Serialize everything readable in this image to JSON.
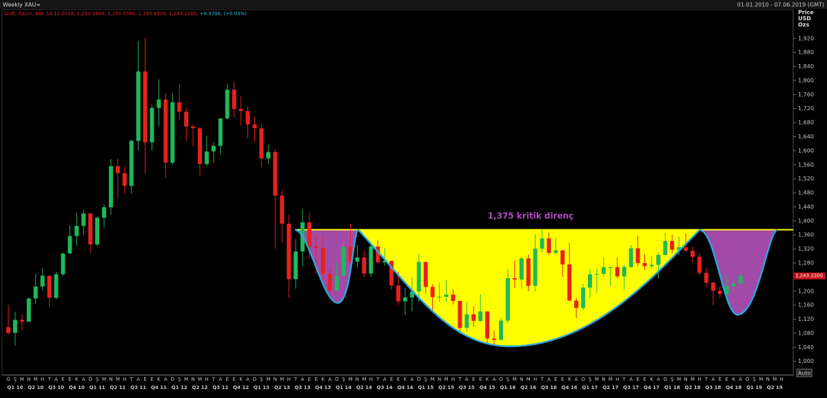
{
  "chart_data": {
    "type": "candlestick",
    "title": "Weekly XAU=",
    "date_range": "01.01.2010 - 07.06.2019 (GMT)",
    "info_line": "Cndl; XAU=, Bid, 14.12.2018, 1,250.3600, 1,250.5500, 1,240.4900, 1,243.2200,",
    "info_change": "+0.3700, (+0.03%)",
    "y_axis_label": [
      "Price",
      "USD",
      "Ozs"
    ],
    "annotation": "1,375 kritik direnç",
    "resistance": 1375,
    "last_price": {
      "value": 1243.22,
      "label": "1,243.2200"
    },
    "auto_button": "Auto",
    "up_color": "#1fb85a",
    "down_color": "#e8201c",
    "categories": [
      "O",
      "Ş",
      "M",
      "N",
      "M",
      "H",
      "T",
      "A",
      "E",
      "E",
      "K",
      "A",
      "O",
      "Ş",
      "M",
      "N",
      "M",
      "H",
      "T",
      "A",
      "E",
      "E",
      "K",
      "A",
      "O",
      "Ş",
      "M",
      "N",
      "M",
      "H",
      "T",
      "A",
      "E",
      "E",
      "K",
      "A",
      "O",
      "Ş",
      "M",
      "N",
      "M",
      "H",
      "T",
      "A",
      "E",
      "E",
      "K",
      "A",
      "O",
      "Ş",
      "M",
      "N",
      "M",
      "H",
      "T",
      "A",
      "E",
      "E",
      "K",
      "A",
      "O",
      "Ş",
      "M",
      "N",
      "M",
      "H",
      "T",
      "A",
      "E",
      "E",
      "K",
      "A",
      "O",
      "Ş",
      "M",
      "N",
      "M",
      "H",
      "T",
      "A",
      "E",
      "E",
      "K",
      "A",
      "O",
      "Ş",
      "M",
      "N",
      "M",
      "H",
      "T",
      "A",
      "E",
      "E",
      "K",
      "A",
      "O",
      "Ş",
      "M",
      "N",
      "M",
      "H",
      "T",
      "A",
      "E",
      "E",
      "K",
      "A",
      "O",
      "Ş",
      "M",
      "N",
      "M",
      "H"
    ],
    "quarters": [
      "Q1 10",
      "Q2 10",
      "Q3 10",
      "Q4 10",
      "Q1 11",
      "Q2 11",
      "Q3 11",
      "Q4 11",
      "Q1 12",
      "Q2 12",
      "Q3 12",
      "Q4 12",
      "Q1 13",
      "Q2 13",
      "Q3 13",
      "Q4 13",
      "Q1 14",
      "Q2 14",
      "Q3 14",
      "Q4 14",
      "Q1 15",
      "Q2 15",
      "Q3 15",
      "Q4 15",
      "Q1 16",
      "Q2 16",
      "Q3 16",
      "Q4 16",
      "Q1 17",
      "Q2 17",
      "Q3 17",
      "Q4 17",
      "Q1 18",
      "Q2 18",
      "Q3 18",
      "Q4 18",
      "Q1 19",
      "Q2 19"
    ],
    "open": [
      1097,
      1081,
      1118,
      1113,
      1179,
      1213,
      1244,
      1181,
      1248,
      1307,
      1357,
      1386,
      1421,
      1333,
      1409,
      1439,
      1556,
      1536,
      1500,
      1628,
      1826,
      1624,
      1722,
      1746,
      1566,
      1738,
      1711,
      1669,
      1664,
      1562,
      1598,
      1614,
      1692,
      1774,
      1719,
      1713,
      1675,
      1664,
      1578,
      1596,
      1472,
      1392,
      1234,
      1313,
      1396,
      1327,
      1323,
      1250,
      1202,
      1244,
      1326,
      1284,
      1296,
      1250,
      1327,
      1282,
      1286,
      1216,
      1171,
      1182,
      1199,
      1283,
      1212,
      1183,
      1184,
      1190,
      1172,
      1095,
      1134,
      1115,
      1142,
      1065,
      1061,
      1116,
      1237,
      1233,
      1293,
      1215,
      1321,
      1350,
      1309,
      1316,
      1276,
      1173,
      1152,
      1210,
      1248,
      1249,
      1268,
      1268,
      1242,
      1269,
      1322,
      1280,
      1271,
      1275,
      1303,
      1343,
      1318,
      1325,
      1315,
      1298,
      1252,
      1224,
      1201,
      1192,
      1214,
      1222,
      null,
      null,
      null,
      null,
      null,
      null
    ],
    "high": [
      1160,
      1141,
      1135,
      1181,
      1249,
      1265,
      1244,
      1254,
      1310,
      1387,
      1424,
      1432,
      1424,
      1412,
      1448,
      1576,
      1577,
      1556,
      1632,
      1913,
      1921,
      1730,
      1803,
      1764,
      1764,
      1791,
      1723,
      1676,
      1668,
      1642,
      1625,
      1693,
      1790,
      1796,
      1755,
      1726,
      1697,
      1677,
      1617,
      1605,
      1488,
      1418,
      1348,
      1434,
      1424,
      1361,
      1361,
      1267,
      1280,
      1345,
      1392,
      1331,
      1315,
      1332,
      1345,
      1322,
      1287,
      1255,
      1209,
      1239,
      1307,
      1284,
      1220,
      1224,
      1232,
      1205,
      1173,
      1170,
      1157,
      1191,
      1143,
      1088,
      1124,
      1263,
      1287,
      1298,
      1304,
      1362,
      1375,
      1367,
      1352,
      1317,
      1338,
      1180,
      1220,
      1264,
      1264,
      1295,
      1270,
      1296,
      1274,
      1331,
      1357,
      1306,
      1299,
      1309,
      1366,
      1361,
      1356,
      1365,
      1326,
      1309,
      1266,
      1226,
      1214,
      1243,
      1237,
      1250,
      null,
      null,
      null,
      null,
      null,
      null
    ],
    "low": [
      1075,
      1045,
      1087,
      1112,
      1164,
      1202,
      1155,
      1176,
      1243,
      1310,
      1330,
      1360,
      1309,
      1328,
      1381,
      1418,
      1462,
      1478,
      1478,
      1600,
      1535,
      1600,
      1670,
      1523,
      1561,
      1688,
      1627,
      1612,
      1527,
      1557,
      1565,
      1589,
      1690,
      1695,
      1672,
      1635,
      1626,
      1554,
      1562,
      1321,
      1338,
      1180,
      1207,
      1271,
      1292,
      1251,
      1228,
      1182,
      1202,
      1238,
      1277,
      1268,
      1240,
      1240,
      1281,
      1272,
      1204,
      1160,
      1131,
      1142,
      1168,
      1192,
      1142,
      1170,
      1169,
      1162,
      1077,
      1085,
      1098,
      1113,
      1052,
      1046,
      1062,
      1108,
      1209,
      1207,
      1200,
      1199,
      1310,
      1302,
      1304,
      1241,
      1171,
      1123,
      1146,
      1180,
      1195,
      1240,
      1214,
      1236,
      1205,
      1266,
      1271,
      1260,
      1264,
      1236,
      1302,
      1307,
      1303,
      1311,
      1282,
      1245,
      1211,
      1160,
      1180,
      1182,
      1196,
      1221,
      null,
      null,
      null,
      null,
      null,
      null
    ],
    "close": [
      1081,
      1118,
      1113,
      1179,
      1213,
      1244,
      1181,
      1248,
      1307,
      1357,
      1386,
      1421,
      1333,
      1409,
      1439,
      1556,
      1536,
      1500,
      1628,
      1826,
      1624,
      1722,
      1746,
      1566,
      1738,
      1711,
      1669,
      1664,
      1562,
      1598,
      1614,
      1692,
      1774,
      1719,
      1713,
      1675,
      1664,
      1578,
      1596,
      1472,
      1392,
      1234,
      1313,
      1396,
      1327,
      1323,
      1250,
      1202,
      1244,
      1326,
      1284,
      1296,
      1250,
      1327,
      1282,
      1286,
      1216,
      1171,
      1182,
      1199,
      1283,
      1212,
      1183,
      1184,
      1190,
      1172,
      1095,
      1134,
      1115,
      1142,
      1065,
      1061,
      1116,
      1237,
      1233,
      1293,
      1215,
      1321,
      1350,
      1309,
      1316,
      1276,
      1173,
      1152,
      1210,
      1248,
      1249,
      1268,
      1268,
      1242,
      1269,
      1322,
      1280,
      1271,
      1275,
      1303,
      1343,
      1318,
      1325,
      1315,
      1298,
      1252,
      1224,
      1201,
      1192,
      1214,
      1222,
      1243,
      null,
      null,
      null,
      null,
      null,
      null
    ],
    "ylim": [
      970,
      2002
    ],
    "yticks": [
      {
        "value": 1000,
        "label": "1,000"
      },
      {
        "value": 1040,
        "label": "1,040"
      },
      {
        "value": 1080,
        "label": "1,080"
      },
      {
        "value": 1120,
        "label": "1,120"
      },
      {
        "value": 1160,
        "label": "1,160"
      },
      {
        "value": 1200,
        "label": "1,200"
      },
      {
        "value": 1240,
        "label": "1,240"
      },
      {
        "value": 1280,
        "label": "1,280"
      },
      {
        "value": 1320,
        "label": "1,320"
      },
      {
        "value": 1360,
        "label": "1,360"
      },
      {
        "value": 1400,
        "label": "1,400"
      },
      {
        "value": 1440,
        "label": "1,440"
      },
      {
        "value": 1480,
        "label": "1,480"
      },
      {
        "value": 1520,
        "label": "1,520"
      },
      {
        "value": 1560,
        "label": "1,560"
      },
      {
        "value": 1600,
        "label": "1,600"
      },
      {
        "value": 1640,
        "label": "1,640"
      },
      {
        "value": 1680,
        "label": "1,680"
      },
      {
        "value": 1720,
        "label": "1,720"
      },
      {
        "value": 1760,
        "label": "1,760"
      },
      {
        "value": 1800,
        "label": "1,800"
      },
      {
        "value": 1840,
        "label": "1,840"
      },
      {
        "value": 1880,
        "label": "1,880"
      },
      {
        "value": 1920,
        "label": "1,920"
      }
    ]
  }
}
